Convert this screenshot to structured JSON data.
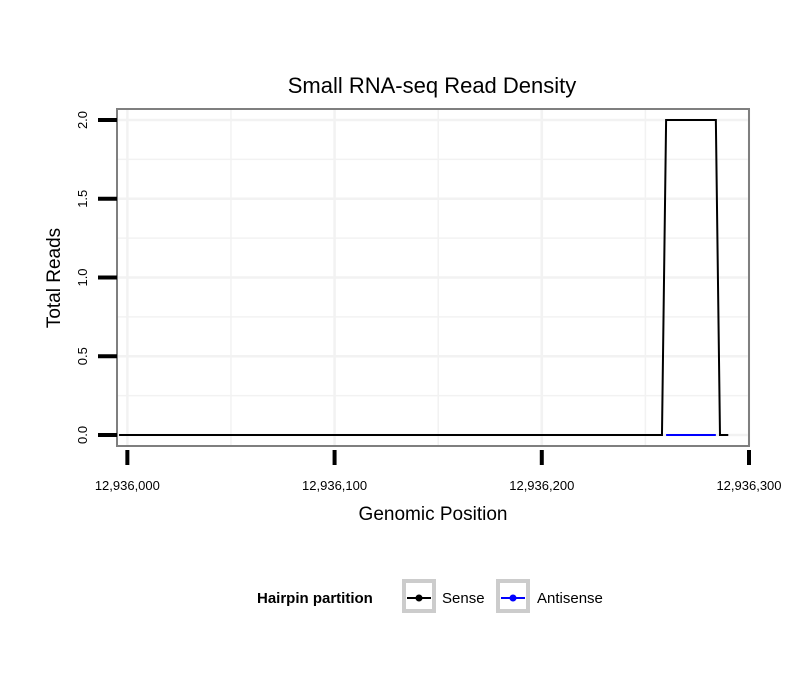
{
  "chart_data": {
    "type": "line",
    "title": "Small RNA-seq Read Density",
    "xlabel": "Genomic Position",
    "ylabel": "Total Reads",
    "xlim": [
      12935995,
      12936300
    ],
    "ylim": [
      -0.07,
      2.07
    ],
    "x_ticks": [
      12936000,
      12936100,
      12936200,
      12936300
    ],
    "x_tick_labels": [
      "12,936,000",
      "12,936,100",
      "12,936,200",
      "12,936,300"
    ],
    "y_ticks": [
      0,
      0.5,
      1,
      1.5,
      2
    ],
    "y_tick_labels": [
      "0.0",
      "0.5",
      "1.0",
      "1.5",
      "2.0"
    ],
    "grid": true,
    "legend": {
      "title": "Hairpin partition",
      "position": "bottom"
    },
    "series": [
      {
        "name": "Sense",
        "color": "#000000",
        "points": [
          [
            12935996,
            0
          ],
          [
            12936258,
            0
          ],
          [
            12936260,
            2
          ],
          [
            12936284,
            2
          ],
          [
            12936286,
            0
          ],
          [
            12936290,
            0
          ]
        ]
      },
      {
        "name": "Antisense",
        "color": "#0000ff",
        "points": [
          [
            12936260,
            0
          ],
          [
            12936284,
            0
          ]
        ]
      }
    ]
  }
}
